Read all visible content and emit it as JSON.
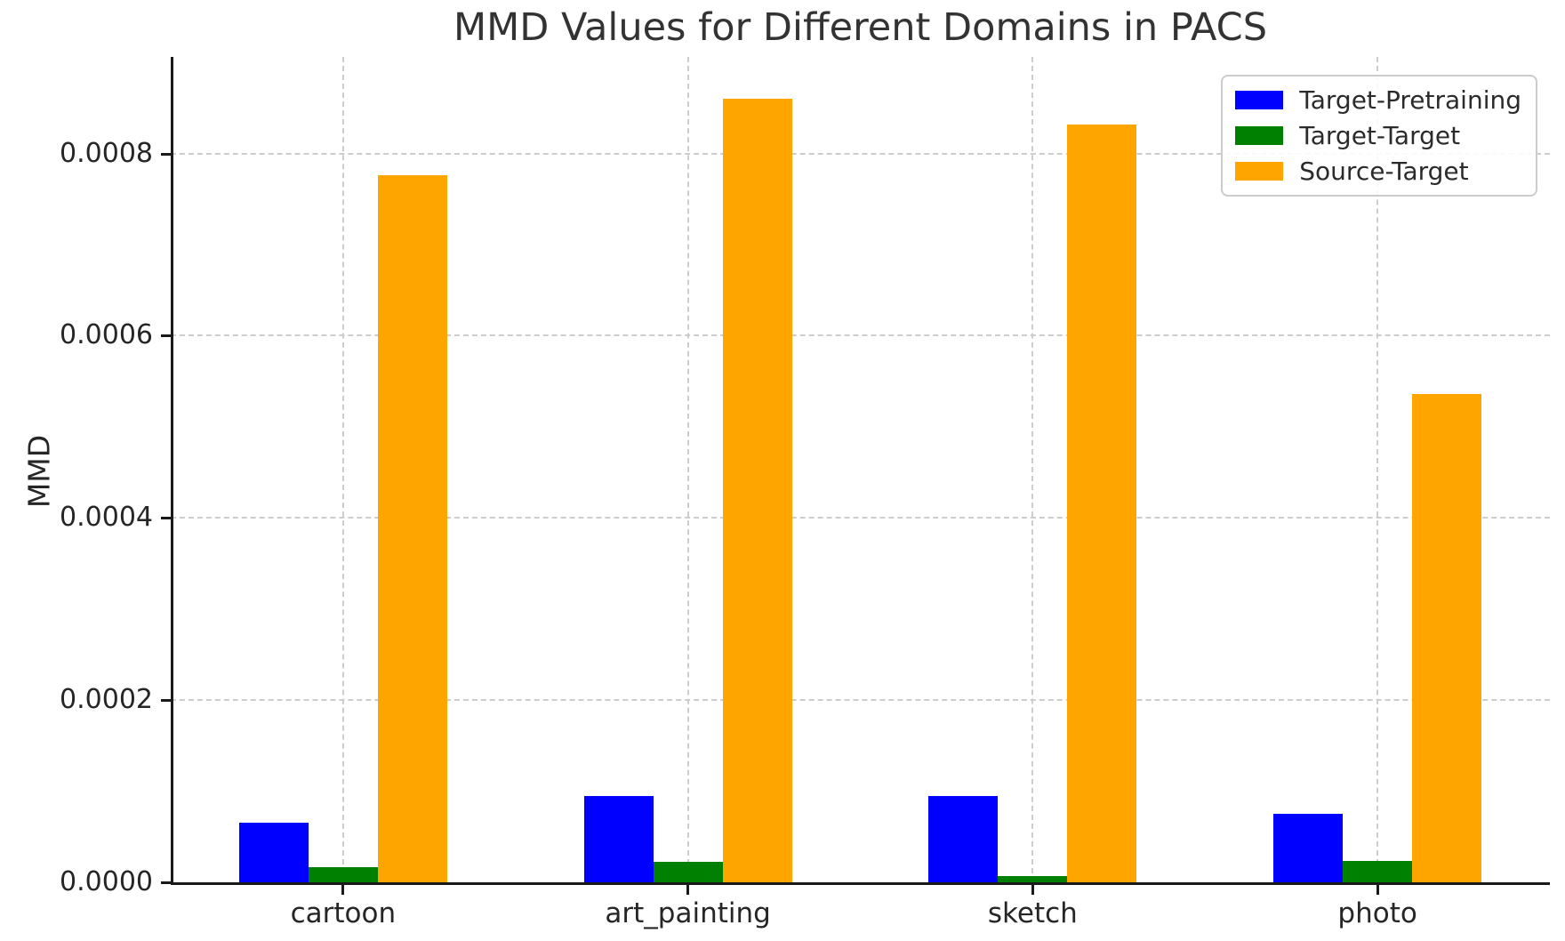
{
  "chart": {
    "title": "MMD Values for Different Domains in PACS",
    "ylabel": "MMD"
  },
  "chart_data": {
    "type": "bar",
    "title": "MMD Values for Different Domains in PACS",
    "xlabel": "",
    "ylabel": "MMD",
    "categories": [
      "cartoon",
      "art_painting",
      "sketch",
      "photo"
    ],
    "series": [
      {
        "name": "Target-Pretraining",
        "color": "#0000ff",
        "values": [
          6.55e-05,
          9.45e-05,
          9.45e-05,
          7.5e-05
        ]
      },
      {
        "name": "Target-Target",
        "color": "#008000",
        "values": [
          1.65e-05,
          2.2e-05,
          6.8e-06,
          2.38e-05
        ]
      },
      {
        "name": "Source-Target",
        "color": "#ffa500",
        "values": [
          0.000776,
          0.00086,
          0.000832,
          0.000536
        ]
      }
    ],
    "ylim": [
      0.0,
      0.000906
    ],
    "yticks": [
      0.0,
      0.0002,
      0.0004,
      0.0006,
      0.0008
    ],
    "ytick_labels": [
      "0.0000",
      "0.0002",
      "0.0004",
      "0.0006",
      "0.0008"
    ],
    "grid": true,
    "grid_style": "dashed",
    "legend_position": "upper right",
    "background": "#ffffff",
    "spine_color": "#1a1a1a",
    "grid_color": "#cdcdcd",
    "text_color": "#262626"
  }
}
